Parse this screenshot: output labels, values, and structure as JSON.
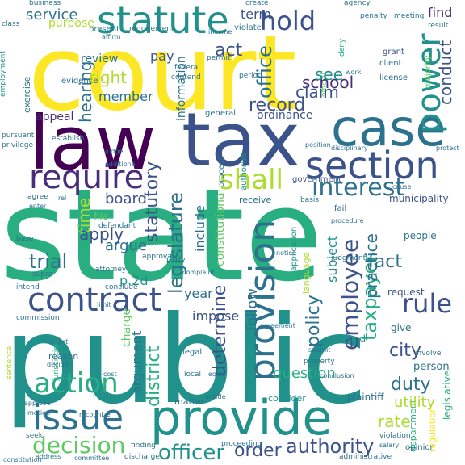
{
  "words": {
    "court": "court",
    "state": "state",
    "law": "law",
    "tax": "tax",
    "public": "public",
    "case": "case",
    "provide": "provide",
    "statute": "statute",
    "section": "section",
    "require": "require",
    "issue": "issue",
    "contract": "contract",
    "provision": "provision",
    "power": "power",
    "interest": "interest",
    "shall": "shall",
    "hold": "hold",
    "action": "action",
    "rule": "rule",
    "decision": "decision",
    "authority": "authority",
    "officer": "officer",
    "order": "order",
    "employee": "employee",
    "taxpayer": "taxpayer",
    "determine": "determine",
    "district": "district",
    "statutory": "statutory",
    "legislature": "legislature",
    "record": "record",
    "school": "school",
    "office": "office",
    "conduct": "conduct",
    "claim": "claim",
    "act": "act",
    "see": "see",
    "right": "right",
    "pay": "pay",
    "review": "review",
    "hearing": "hearing",
    "service": "service",
    "purpose": "purpose",
    "term": "term",
    "regulation": "regulation",
    "find": "find",
    "present": "present",
    "violate": "violate",
    "member": "member",
    "information": "information",
    "appeal": "appeal",
    "ordinance": "ordinance",
    "general": "general",
    "practice": "practice",
    "policy": "policy",
    "fact": "fact",
    "city": "city",
    "duty": "duty",
    "rate": "rate",
    "utility": "utility",
    "follow": "follow",
    "question": "question",
    "argument": "argument",
    "apply": "apply",
    "argue": "argue",
    "trial": "trial",
    "time": "time",
    "board": "board",
    "year": "year",
    "impose": "impose",
    "include": "include",
    "constitutional": "constitutional",
    "p2d": "p.2d",
    "subject": "subject",
    "municipality": "municipality",
    "receive": "receive",
    "government": "government",
    "file": "file",
    "people": "people",
    "request": "request",
    "fund": "fund",
    "give": "give",
    "person": "person",
    "plaintiff": "plaintiff",
    "department": "department",
    "consider": "consider",
    "matter": "matter",
    "charge": "charge",
    "reason": "reason",
    "evidence": "evidence",
    "license": "license",
    "client": "client",
    "grant": "grant",
    "business": "business",
    "agency": "agency",
    "create": "create",
    "penalty": "penalty",
    "meeting": "meeting",
    "result": "result",
    "class": "class",
    "requirement": "requirement",
    "federal": "federal",
    "contend": "contend",
    "period": "period",
    "permit": "permit",
    "exercise": "exercise",
    "pursuant": "pursuant",
    "privilege": "privilege",
    "establish": "establish",
    "agree": "agree",
    "base": "base",
    "enter": "enter",
    "rel": "rel",
    "language": "language",
    "application": "application",
    "basis": "basis",
    "fail": "fail",
    "defendant": "defendant",
    "attorney": "attorney",
    "supra": "supra",
    "intend": "intend",
    "conclude": "conclude",
    "commission": "commission",
    "approval": "approval",
    "party": "party",
    "judgment": "judgment",
    "legal": "legal",
    "local": "local",
    "sentence": "sentence",
    "property": "property",
    "seek": "seek",
    "finding": "finding",
    "proceeding": "proceeding",
    "discharge": "discharge",
    "administrative": "administrative",
    "violation": "violation",
    "opinion": "opinion",
    "legislative": "legislative",
    "involve": "involve",
    "motion": "motion",
    "approve": "approve",
    "address": "address",
    "decide": "decide",
    "affirm": "affirm",
    "deny": "deny",
    "majority": "majority",
    "official": "official",
    "process": "process",
    "position": "position",
    "procedure": "procedure",
    "disciplinary": "disciplinary",
    "complaint": "complaint",
    "authorize": "authorize",
    "jurisdiction": "jurisdiction",
    "cost": "cost",
    "submit": "submit",
    "conclusion": "conclusion",
    "recognize": "recognize",
    "equal": "equal",
    "enact": "enact",
    "cause": "cause",
    "income": "income",
    "work": "work",
    "employment": "employment",
    "additional": "additional",
    "limit": "limit",
    "agreement": "agreement",
    "judge": "judge",
    "salary": "salary",
    "entitle": "entitle",
    "committee": "committee",
    "constitution": "constitution",
    "notice": "notice",
    "protect": "protect"
  }
}
